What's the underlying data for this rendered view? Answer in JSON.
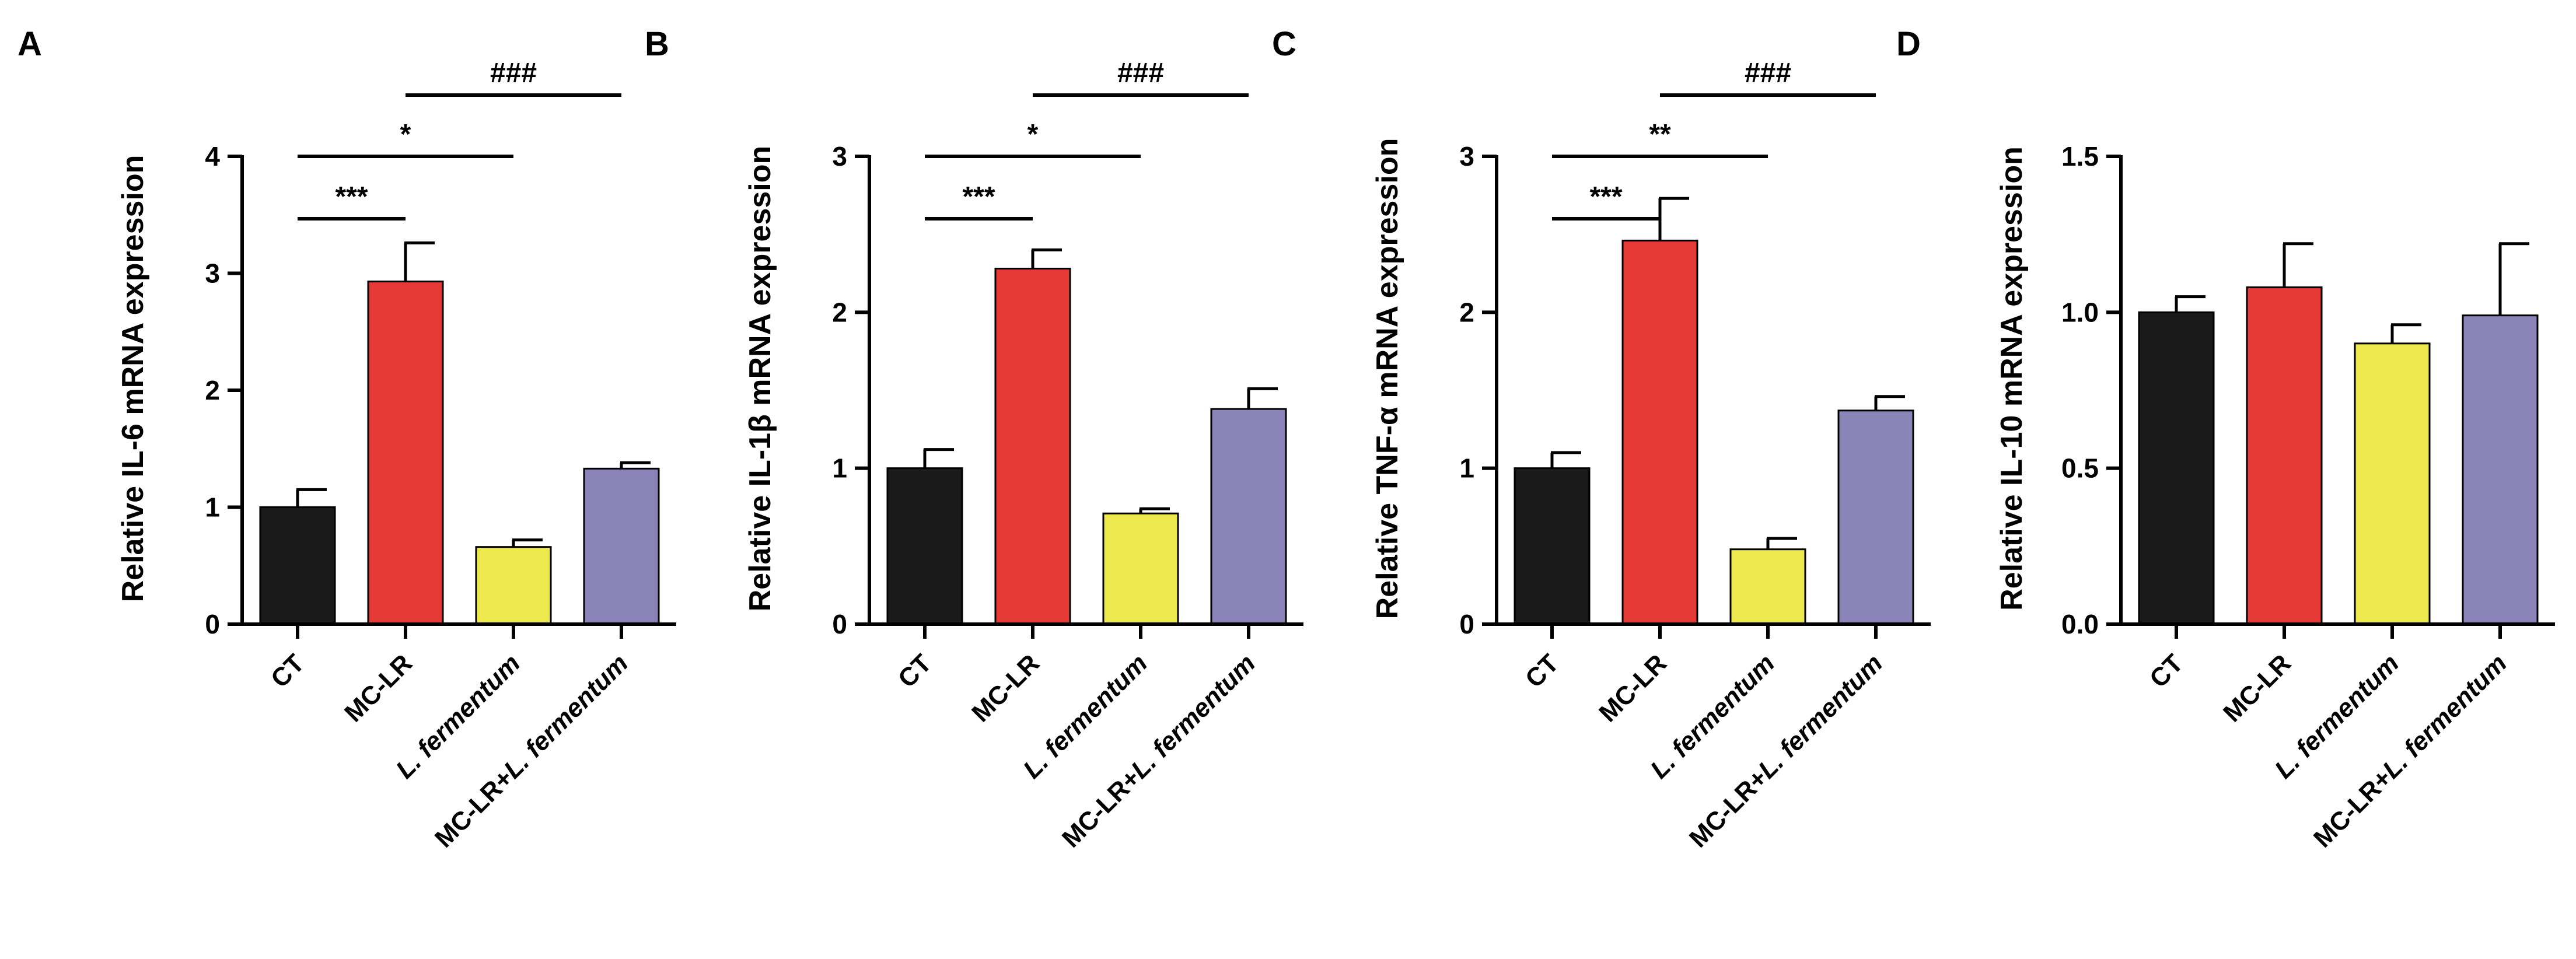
{
  "chart_data": [
    {
      "type": "bar",
      "panel": "A",
      "ylabel": "Relative IL-6 mRNA expression",
      "ylim": [
        0,
        4
      ],
      "yticks": [
        "0",
        "1",
        "2",
        "3",
        "4"
      ],
      "tick_values": [
        0,
        1,
        2,
        3,
        4
      ],
      "categories": [
        {
          "parts": [
            {
              "t": "CT",
              "i": false
            }
          ]
        },
        {
          "parts": [
            {
              "t": "MC-LR",
              "i": false
            }
          ]
        },
        {
          "parts": [
            {
              "t": "L. fermentum",
              "i": true
            }
          ]
        },
        {
          "parts": [
            {
              "t": "MC-LR+",
              "i": false
            },
            {
              "t": "L. fermentum",
              "i": true
            }
          ]
        }
      ],
      "values": [
        1.0,
        2.93,
        0.66,
        1.33
      ],
      "errors": [
        0.15,
        0.33,
        0.06,
        0.05
      ],
      "comparisons": [
        {
          "from": 0,
          "to": 1,
          "label": "***",
          "level": 1
        },
        {
          "from": 0,
          "to": 2,
          "label": "*",
          "level": 2
        },
        {
          "from": 1,
          "to": 3,
          "label": "###",
          "level": 3
        }
      ]
    },
    {
      "type": "bar",
      "panel": "B",
      "ylabel": "Relative IL-1β mRNA expression",
      "ylim": [
        0,
        3
      ],
      "yticks": [
        "0",
        "1",
        "2",
        "3"
      ],
      "tick_values": [
        0,
        1,
        2,
        3
      ],
      "categories": [
        {
          "parts": [
            {
              "t": "CT",
              "i": false
            }
          ]
        },
        {
          "parts": [
            {
              "t": "MC-LR",
              "i": false
            }
          ]
        },
        {
          "parts": [
            {
              "t": "L. fermentum",
              "i": true
            }
          ]
        },
        {
          "parts": [
            {
              "t": "MC-LR+",
              "i": false
            },
            {
              "t": "L. fermentum",
              "i": true
            }
          ]
        }
      ],
      "values": [
        1.0,
        2.28,
        0.71,
        1.38
      ],
      "errors": [
        0.12,
        0.12,
        0.03,
        0.13
      ],
      "comparisons": [
        {
          "from": 0,
          "to": 1,
          "label": "***",
          "level": 1
        },
        {
          "from": 0,
          "to": 2,
          "label": "*",
          "level": 2
        },
        {
          "from": 1,
          "to": 3,
          "label": "###",
          "level": 3
        }
      ]
    },
    {
      "type": "bar",
      "panel": "C",
      "ylabel": "Relative TNF-α mRNA expression",
      "ylim": [
        0,
        3
      ],
      "yticks": [
        "0",
        "1",
        "2",
        "3"
      ],
      "tick_values": [
        0,
        1,
        2,
        3
      ],
      "categories": [
        {
          "parts": [
            {
              "t": "CT",
              "i": false
            }
          ]
        },
        {
          "parts": [
            {
              "t": "MC-LR",
              "i": false
            }
          ]
        },
        {
          "parts": [
            {
              "t": "L. fermentum",
              "i": true
            }
          ]
        },
        {
          "parts": [
            {
              "t": "MC-LR+",
              "i": false
            },
            {
              "t": "L. fermentum",
              "i": true
            }
          ]
        }
      ],
      "values": [
        1.0,
        2.46,
        0.48,
        1.37
      ],
      "errors": [
        0.1,
        0.27,
        0.07,
        0.09
      ],
      "comparisons": [
        {
          "from": 0,
          "to": 1,
          "label": "***",
          "level": 1
        },
        {
          "from": 0,
          "to": 2,
          "label": "**",
          "level": 2
        },
        {
          "from": 1,
          "to": 3,
          "label": "###",
          "level": 3
        }
      ]
    },
    {
      "type": "bar",
      "panel": "D",
      "ylabel": "Relative IL-10 mRNA expression",
      "ylim": [
        0,
        1.5
      ],
      "yticks": [
        "0.0",
        "0.5",
        "1.0",
        "1.5"
      ],
      "tick_values": [
        0,
        0.5,
        1.0,
        1.5
      ],
      "categories": [
        {
          "parts": [
            {
              "t": "CT",
              "i": false
            }
          ]
        },
        {
          "parts": [
            {
              "t": "MC-LR",
              "i": false
            }
          ]
        },
        {
          "parts": [
            {
              "t": "L. fermentum",
              "i": true
            }
          ]
        },
        {
          "parts": [
            {
              "t": "MC-LR+",
              "i": false
            },
            {
              "t": "L. fermentum",
              "i": true
            }
          ]
        }
      ],
      "values": [
        1.0,
        1.08,
        0.9,
        0.99
      ],
      "errors": [
        0.05,
        0.14,
        0.06,
        0.23
      ],
      "comparisons": []
    }
  ],
  "colors": {
    "bars": [
      "#1a1a1a",
      "#e53935",
      "#ede84e",
      "#8a84b8"
    ],
    "axis": "#000000"
  }
}
